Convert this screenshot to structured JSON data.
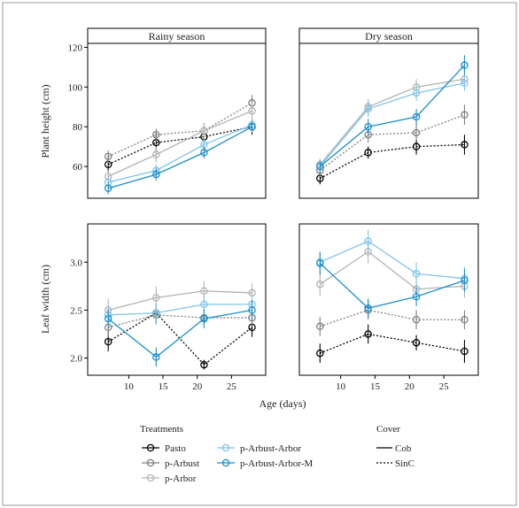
{
  "chart_data": {
    "type": "line",
    "facets": [
      "Rainy season",
      "Dry season"
    ],
    "x": [
      7,
      14,
      21,
      28
    ],
    "xlabel": "Age (days)",
    "xlim": [
      4,
      30
    ],
    "xticks": [
      10,
      15,
      20,
      25
    ],
    "grid": false,
    "error_bars": true,
    "rows": [
      {
        "ylabel": "Plant height (cm)",
        "ylim": [
          44,
          122
        ],
        "yticks": [
          60,
          80,
          100,
          120
        ],
        "ytick_labels": [
          "60",
          "80",
          "100",
          "120"
        ],
        "panels": [
          {
            "facet": "Rainy season",
            "series": [
              {
                "name": "Pasto",
                "cover": "SinC",
                "values": [
                  61,
                  72,
                  75,
                  80
                ],
                "err": [
                  4,
                  5,
                  5,
                  4
                ]
              },
              {
                "name": "p-Arbust",
                "cover": "SinC",
                "values": [
                  65,
                  76,
                  78,
                  92
                ],
                "err": [
                  3,
                  3,
                  4,
                  4
                ]
              },
              {
                "name": "p-Arbor",
                "cover": "Cob",
                "values": [
                  55,
                  66,
                  78,
                  88
                ],
                "err": [
                  3,
                  4,
                  4,
                  4
                ]
              },
              {
                "name": "p-Arbust-Arbor",
                "cover": "Cob",
                "values": [
                  52,
                  58,
                  71,
                  81
                ],
                "err": [
                  3,
                  3,
                  3,
                  3
                ]
              },
              {
                "name": "p-Arbust-Arbor-M",
                "cover": "Cob",
                "values": [
                  49,
                  56,
                  67,
                  80
                ],
                "err": [
                  3,
                  3,
                  3,
                  3
                ]
              }
            ]
          },
          {
            "facet": "Dry season",
            "series": [
              {
                "name": "Pasto",
                "cover": "SinC",
                "values": [
                  54,
                  67,
                  70,
                  71
                ],
                "err": [
                  3,
                  3,
                  4,
                  5
                ]
              },
              {
                "name": "p-Arbust",
                "cover": "SinC",
                "values": [
                  58,
                  76,
                  77,
                  86
                ],
                "err": [
                  3,
                  4,
                  4,
                  5
                ]
              },
              {
                "name": "p-Arbor",
                "cover": "Cob",
                "values": [
                  61,
                  90,
                  100,
                  104
                ],
                "err": [
                  3,
                  4,
                  4,
                  4
                ]
              },
              {
                "name": "p-Arbust-Arbor",
                "cover": "Cob",
                "values": [
                  60,
                  89,
                  97,
                  102
                ],
                "err": [
                  3,
                  4,
                  4,
                  4
                ]
              },
              {
                "name": "p-Arbust-Arbor-M",
                "cover": "Cob",
                "values": [
                  60,
                  80,
                  85,
                  111
                ],
                "err": [
                  3,
                  4,
                  4,
                  5
                ]
              }
            ]
          }
        ]
      },
      {
        "ylabel": "Leaf width (cm)",
        "ylim": [
          1.82,
          3.4
        ],
        "yticks": [
          2.0,
          2.5,
          3.0
        ],
        "ytick_labels": [
          "2.0",
          "2.5",
          "3.0"
        ],
        "panels": [
          {
            "facet": "Rainy season",
            "series": [
              {
                "name": "Pasto",
                "cover": "SinC",
                "values": [
                  2.17,
                  2.47,
                  1.93,
                  2.32
                ],
                "err": [
                  0.1,
                  0.1,
                  0.05,
                  0.1
                ]
              },
              {
                "name": "p-Arbust",
                "cover": "SinC",
                "values": [
                  2.32,
                  2.45,
                  2.42,
                  2.42
                ],
                "err": [
                  0.1,
                  0.1,
                  0.08,
                  0.08
                ]
              },
              {
                "name": "p-Arbor",
                "cover": "Cob",
                "values": [
                  2.5,
                  2.63,
                  2.7,
                  2.68
                ],
                "err": [
                  0.12,
                  0.12,
                  0.1,
                  0.1
                ]
              },
              {
                "name": "p-Arbust-Arbor",
                "cover": "Cob",
                "values": [
                  2.45,
                  2.47,
                  2.56,
                  2.56
                ],
                "err": [
                  0.1,
                  0.1,
                  0.1,
                  0.1
                ]
              },
              {
                "name": "p-Arbust-Arbor-M",
                "cover": "Cob",
                "values": [
                  2.41,
                  2.01,
                  2.41,
                  2.5
                ],
                "err": [
                  0.1,
                  0.1,
                  0.1,
                  0.1
                ]
              }
            ]
          },
          {
            "facet": "Dry season",
            "series": [
              {
                "name": "Pasto",
                "cover": "SinC",
                "values": [
                  2.05,
                  2.25,
                  2.16,
                  2.07
                ],
                "err": [
                  0.1,
                  0.1,
                  0.08,
                  0.12
                ]
              },
              {
                "name": "p-Arbust",
                "cover": "SinC",
                "values": [
                  2.33,
                  2.5,
                  2.4,
                  2.4
                ],
                "err": [
                  0.1,
                  0.1,
                  0.1,
                  0.1
                ]
              },
              {
                "name": "p-Arbor",
                "cover": "Cob",
                "values": [
                  2.77,
                  3.11,
                  2.72,
                  2.75
                ],
                "err": [
                  0.12,
                  0.12,
                  0.1,
                  0.12
                ]
              },
              {
                "name": "p-Arbust-Arbor",
                "cover": "Cob",
                "values": [
                  3.0,
                  3.22,
                  2.88,
                  2.83
                ],
                "err": [
                  0.1,
                  0.12,
                  0.12,
                  0.12
                ]
              },
              {
                "name": "p-Arbust-Arbor-M",
                "cover": "Cob",
                "values": [
                  2.99,
                  2.52,
                  2.64,
                  2.81
                ],
                "err": [
                  0.12,
                  0.1,
                  0.1,
                  0.12
                ]
              }
            ]
          }
        ]
      }
    ],
    "series_styles": [
      {
        "name": "Pasto",
        "color": "#000000"
      },
      {
        "name": "p-Arbust",
        "color": "#7f7f7f"
      },
      {
        "name": "p-Arbor",
        "color": "#b3b3b3"
      },
      {
        "name": "p-Arbust-Arbor",
        "color": "#7fc4ea"
      },
      {
        "name": "p-Arbust-Arbor-M",
        "color": "#1a8fc9"
      }
    ],
    "legend": {
      "position": "bottom",
      "treatments_title": "Treatments",
      "treatments": [
        "Pasto",
        "p-Arbust",
        "p-Arbor",
        "p-Arbust-Arbor",
        "p-Arbust-Arbor-M"
      ],
      "cover_title": "Cover",
      "covers": [
        {
          "name": "Cob",
          "dash": "solid"
        },
        {
          "name": "SinC",
          "dash": "dotted"
        }
      ]
    }
  }
}
